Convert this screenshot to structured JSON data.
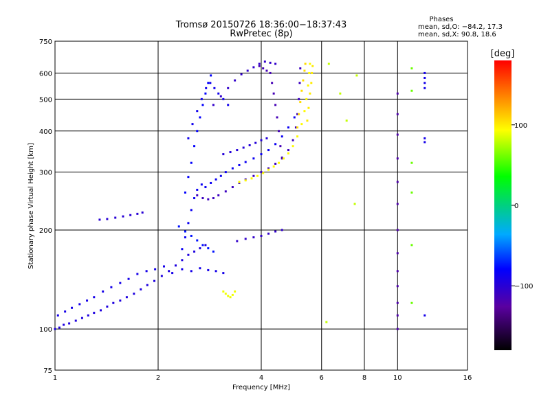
{
  "chart_data": {
    "type": "scatter",
    "title": "Tromsø 20150726 18:36:00−18:37:43",
    "subtitle": "RwPretec (8p)",
    "xlabel": "Frequency [MHz]",
    "ylabel": "Stationary phase Virtual Height [km]",
    "x_scale": "log",
    "y_scale": "log",
    "xlim": [
      1,
      16
    ],
    "ylim": [
      75,
      750
    ],
    "x_ticks": [
      "1",
      "2",
      "4",
      "6",
      "8",
      "10",
      "16"
    ],
    "y_ticks": [
      "75",
      "100",
      "200",
      "300",
      "400",
      "500",
      "600",
      "750"
    ],
    "grid": true,
    "phases": {
      "heading": "Phases",
      "line_o": "mean, sd,O: −84.2, 17.3",
      "line_x": "mean, sd,X:  90.8, 18.6"
    },
    "colorbar": {
      "label": "[deg]",
      "range": [
        -180,
        180
      ],
      "tick_labels": [
        "100",
        "0",
        "−100"
      ],
      "tick_values": [
        100,
        0,
        -100
      ]
    },
    "traces": [
      {
        "phase": -95,
        "points": [
          [
            1.0,
            100
          ],
          [
            1.03,
            101
          ],
          [
            1.06,
            103
          ],
          [
            1.1,
            104
          ],
          [
            1.15,
            106
          ],
          [
            1.2,
            108
          ],
          [
            1.25,
            110
          ],
          [
            1.3,
            112
          ],
          [
            1.36,
            114
          ],
          [
            1.42,
            117
          ],
          [
            1.48,
            120
          ],
          [
            1.55,
            122
          ],
          [
            1.62,
            125
          ],
          [
            1.7,
            128
          ],
          [
            1.78,
            132
          ],
          [
            1.86,
            136
          ],
          [
            1.95,
            140
          ],
          [
            2.05,
            145
          ],
          [
            2.15,
            150
          ],
          [
            2.25,
            156
          ],
          [
            2.35,
            162
          ],
          [
            2.45,
            168
          ],
          [
            2.55,
            172
          ],
          [
            2.65,
            176
          ],
          [
            2.75,
            180
          ]
        ]
      },
      {
        "phase": -90,
        "points": [
          [
            1.02,
            110
          ],
          [
            1.07,
            113
          ],
          [
            1.12,
            116
          ],
          [
            1.18,
            119
          ],
          [
            1.24,
            122
          ],
          [
            1.3,
            125
          ],
          [
            1.38,
            130
          ],
          [
            1.46,
            134
          ],
          [
            1.55,
            138
          ],
          [
            1.64,
            142
          ],
          [
            1.74,
            147
          ],
          [
            1.85,
            150
          ],
          [
            1.96,
            152
          ],
          [
            2.08,
            155
          ],
          [
            2.2,
            148
          ],
          [
            2.35,
            152
          ],
          [
            2.5,
            150
          ],
          [
            2.65,
            153
          ],
          [
            2.8,
            151
          ],
          [
            2.95,
            150
          ],
          [
            3.1,
            148
          ]
        ]
      },
      {
        "phase": -100,
        "points": [
          [
            1.35,
            215
          ],
          [
            1.42,
            216
          ],
          [
            1.5,
            218
          ],
          [
            1.58,
            220
          ],
          [
            1.66,
            222
          ],
          [
            1.74,
            224
          ],
          [
            1.8,
            226
          ]
        ]
      },
      {
        "phase": -85,
        "points": [
          [
            2.35,
            175
          ],
          [
            2.4,
            190
          ],
          [
            2.45,
            210
          ],
          [
            2.5,
            230
          ],
          [
            2.55,
            250
          ],
          [
            2.6,
            265
          ],
          [
            2.68,
            275
          ],
          [
            2.75,
            270
          ],
          [
            2.85,
            278
          ],
          [
            2.95,
            285
          ],
          [
            3.05,
            292
          ],
          [
            3.15,
            300
          ],
          [
            3.3,
            308
          ],
          [
            3.45,
            315
          ],
          [
            3.6,
            322
          ],
          [
            3.8,
            330
          ],
          [
            4.0,
            340
          ],
          [
            4.2,
            350
          ],
          [
            4.4,
            365
          ],
          [
            4.6,
            385
          ],
          [
            4.8,
            410
          ],
          [
            5.0,
            440
          ]
        ]
      },
      {
        "phase": -110,
        "points": [
          [
            2.6,
            255
          ],
          [
            2.7,
            250
          ],
          [
            2.8,
            248
          ],
          [
            2.9,
            250
          ],
          [
            3.0,
            255
          ],
          [
            3.15,
            262
          ],
          [
            3.3,
            270
          ],
          [
            3.45,
            278
          ],
          [
            3.6,
            285
          ],
          [
            3.8,
            292
          ],
          [
            4.0,
            300
          ],
          [
            4.2,
            308
          ],
          [
            4.4,
            318
          ],
          [
            4.6,
            332
          ],
          [
            4.8,
            350
          ],
          [
            4.95,
            375
          ],
          [
            5.05,
            410
          ],
          [
            5.1,
            450
          ],
          [
            5.15,
            500
          ],
          [
            5.18,
            560
          ],
          [
            5.2,
            620
          ]
        ]
      },
      {
        "phase": -80,
        "points": [
          [
            2.4,
            260
          ],
          [
            2.45,
            290
          ],
          [
            2.5,
            320
          ],
          [
            2.55,
            360
          ],
          [
            2.6,
            400
          ],
          [
            2.65,
            440
          ],
          [
            2.7,
            480
          ],
          [
            2.75,
            520
          ],
          [
            2.8,
            560
          ],
          [
            2.85,
            590
          ]
        ]
      },
      {
        "phase": -88,
        "points": [
          [
            2.45,
            380
          ],
          [
            2.52,
            420
          ],
          [
            2.6,
            460
          ],
          [
            2.68,
            500
          ],
          [
            2.76,
            540
          ],
          [
            2.84,
            560
          ],
          [
            2.92,
            540
          ],
          [
            3.0,
            520
          ],
          [
            3.1,
            500
          ],
          [
            3.2,
            480
          ]
        ]
      },
      {
        "phase": -105,
        "points": [
          [
            2.9,
            480
          ],
          [
            3.05,
            510
          ],
          [
            3.2,
            540
          ],
          [
            3.35,
            570
          ],
          [
            3.5,
            595
          ],
          [
            3.65,
            610
          ],
          [
            3.8,
            625
          ],
          [
            3.95,
            640
          ],
          [
            4.1,
            650
          ],
          [
            4.25,
            645
          ],
          [
            4.4,
            640
          ]
        ]
      },
      {
        "phase": -115,
        "points": [
          [
            3.95,
            630
          ],
          [
            4.05,
            620
          ],
          [
            4.15,
            610
          ],
          [
            4.25,
            600
          ],
          [
            4.3,
            560
          ],
          [
            4.35,
            520
          ],
          [
            4.4,
            480
          ],
          [
            4.45,
            440
          ],
          [
            4.5,
            400
          ],
          [
            4.55,
            360
          ],
          [
            4.6,
            330
          ]
        ]
      },
      {
        "phase": -98,
        "points": [
          [
            3.1,
            340
          ],
          [
            3.25,
            345
          ],
          [
            3.4,
            350
          ],
          [
            3.55,
            356
          ],
          [
            3.7,
            362
          ],
          [
            3.85,
            368
          ],
          [
            4.0,
            375
          ],
          [
            4.15,
            380
          ]
        ]
      },
      {
        "phase": 95,
        "points": [
          [
            3.45,
            280
          ],
          [
            3.6,
            283
          ],
          [
            3.75,
            287
          ],
          [
            3.9,
            292
          ],
          [
            4.05,
            298
          ],
          [
            4.2,
            305
          ],
          [
            4.35,
            312
          ],
          [
            4.5,
            320
          ],
          [
            4.65,
            330
          ],
          [
            4.8,
            342
          ],
          [
            4.95,
            360
          ],
          [
            5.1,
            385
          ],
          [
            5.25,
            420
          ],
          [
            5.35,
            460
          ],
          [
            5.42,
            500
          ],
          [
            5.48,
            550
          ],
          [
            5.52,
            600
          ],
          [
            5.55,
            640
          ]
        ]
      },
      {
        "phase": 105,
        "points": [
          [
            5.1,
            410
          ],
          [
            5.15,
            450
          ],
          [
            5.2,
            490
          ],
          [
            5.25,
            530
          ],
          [
            5.3,
            570
          ],
          [
            5.35,
            610
          ],
          [
            5.38,
            640
          ]
        ]
      },
      {
        "phase": 100,
        "points": [
          [
            5.45,
            430
          ],
          [
            5.5,
            470
          ],
          [
            5.55,
            520
          ],
          [
            5.6,
            560
          ],
          [
            5.62,
            600
          ],
          [
            5.65,
            630
          ]
        ]
      },
      {
        "phase": 90,
        "points": [
          [
            3.1,
            130
          ],
          [
            3.15,
            128
          ],
          [
            3.2,
            126
          ],
          [
            3.25,
            125
          ],
          [
            3.3,
            127
          ],
          [
            3.35,
            130
          ]
        ]
      },
      {
        "phase": -75,
        "points": [
          [
            2.3,
            205
          ],
          [
            2.4,
            198
          ],
          [
            2.5,
            192
          ],
          [
            2.6,
            186
          ],
          [
            2.7,
            180
          ],
          [
            2.8,
            176
          ],
          [
            2.9,
            172
          ]
        ]
      },
      {
        "phase": -105,
        "points": [
          [
            3.4,
            185
          ],
          [
            3.6,
            188
          ],
          [
            3.8,
            190
          ],
          [
            4.0,
            192
          ],
          [
            4.2,
            195
          ],
          [
            4.4,
            198
          ],
          [
            4.6,
            200
          ]
        ]
      },
      {
        "phase": -120,
        "points": [
          [
            10.0,
            100
          ],
          [
            10.0,
            110
          ],
          [
            10.0,
            120
          ],
          [
            10.0,
            135
          ],
          [
            10.0,
            150
          ],
          [
            10.0,
            170
          ],
          [
            10.0,
            200
          ],
          [
            10.0,
            240
          ],
          [
            10.0,
            280
          ],
          [
            10.0,
            330
          ],
          [
            10.0,
            390
          ],
          [
            10.0,
            450
          ],
          [
            10.0,
            520
          ]
        ]
      },
      {
        "phase": -90,
        "points": [
          [
            12.0,
            540
          ],
          [
            12.0,
            560
          ],
          [
            12.0,
            580
          ],
          [
            12.0,
            600
          ],
          [
            12.0,
            380
          ],
          [
            12.0,
            370
          ],
          [
            12.0,
            110
          ]
        ]
      },
      {
        "phase": 60,
        "points": [
          [
            11.0,
            620
          ],
          [
            11.0,
            530
          ],
          [
            11.0,
            320
          ],
          [
            11.0,
            260
          ],
          [
            11.0,
            180
          ],
          [
            11.0,
            120
          ]
        ]
      },
      {
        "phase": 80,
        "points": [
          [
            6.3,
            640
          ],
          [
            7.1,
            430
          ],
          [
            6.2,
            105
          ],
          [
            7.5,
            240
          ],
          [
            6.8,
            520
          ],
          [
            7.6,
            590
          ]
        ]
      }
    ]
  }
}
